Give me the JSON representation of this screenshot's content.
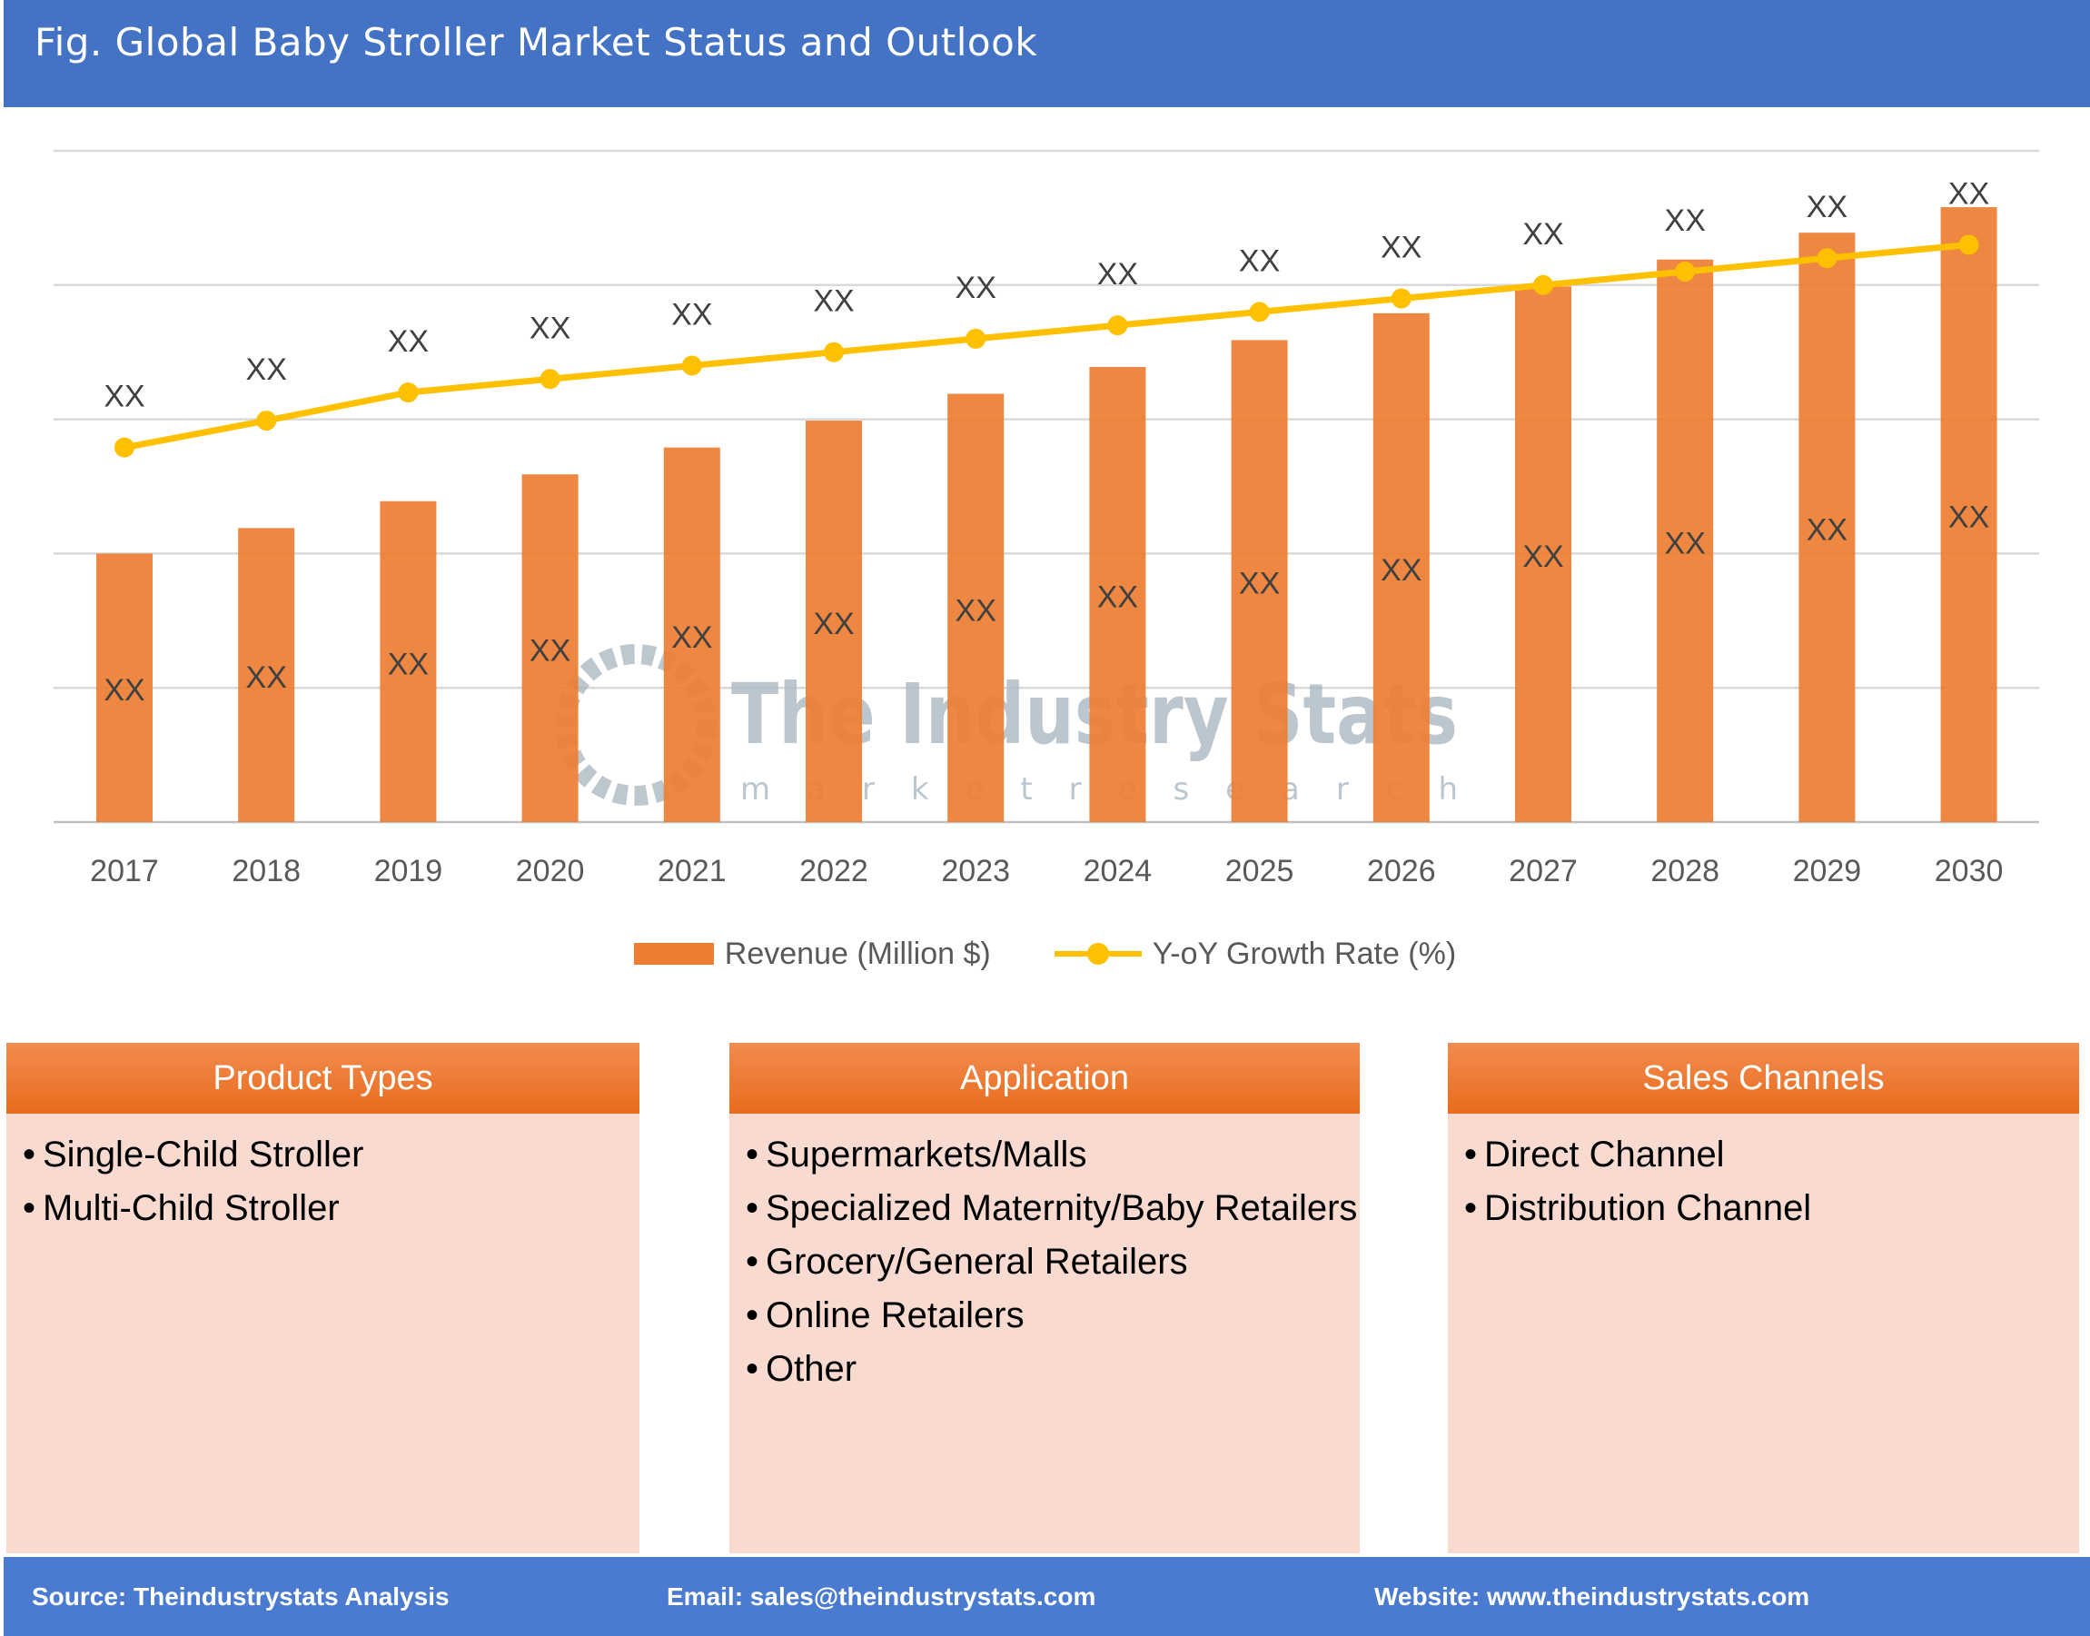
{
  "header": {
    "title": "Fig. Global Baby Stroller Market Status and Outlook"
  },
  "watermark": {
    "name": "The Industry Stats",
    "tagline": "m a r k e t   r e s e a r c h"
  },
  "chart_data": {
    "type": "bar+line",
    "categories": [
      "2017",
      "2018",
      "2019",
      "2020",
      "2021",
      "2022",
      "2023",
      "2024",
      "2025",
      "2026",
      "2027",
      "2028",
      "2029",
      "2030"
    ],
    "series": [
      {
        "name": "Revenue (Million $)",
        "type": "bar",
        "color": "#ED7D31",
        "values": [
          2.0,
          2.19,
          2.39,
          2.59,
          2.79,
          2.99,
          3.19,
          3.39,
          3.59,
          3.79,
          3.99,
          4.19,
          4.39,
          4.58
        ],
        "labels": [
          "XX",
          "XX",
          "XX",
          "XX",
          "XX",
          "XX",
          "XX",
          "XX",
          "XX",
          "XX",
          "XX",
          "XX",
          "XX",
          "XX"
        ]
      },
      {
        "name": "Y-oY Growth Rate (%)",
        "type": "line",
        "color": "#FFC000",
        "values": [
          2.79,
          2.99,
          3.2,
          3.3,
          3.4,
          3.5,
          3.6,
          3.7,
          3.8,
          3.9,
          4.0,
          4.1,
          4.2,
          4.3
        ],
        "labels": [
          "XX",
          "XX",
          "XX",
          "XX",
          "XX",
          "XX",
          "XX",
          "XX",
          "XX",
          "XX",
          "XX",
          "XX",
          "XX",
          "XX"
        ]
      }
    ],
    "ylim": [
      0,
      5
    ],
    "y_ticks_shown": false,
    "grid": true,
    "legend": "bottom"
  },
  "panels": [
    {
      "title": "Product Types",
      "items": [
        "Single-Child Stroller",
        "Multi-Child Stroller"
      ]
    },
    {
      "title": "Application",
      "items": [
        "Supermarkets/Malls",
        "Specialized Maternity/Baby Retailers",
        "Grocery/General Retailers",
        "Online Retailers",
        "Other"
      ]
    },
    {
      "title": "Sales Channels",
      "items": [
        "Direct Channel",
        "Distribution Channel"
      ]
    }
  ],
  "footer": {
    "source": "Source: Theindustrystats Analysis",
    "email": "Email: sales@theindustrystats.com",
    "website": "Website: www.theindustrystats.com"
  }
}
